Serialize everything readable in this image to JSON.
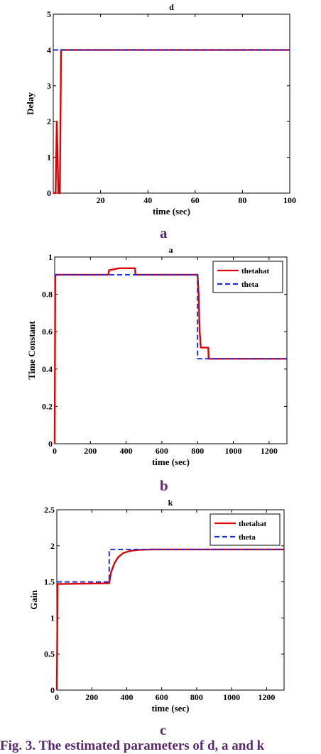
{
  "chart_data": [
    {
      "type": "line",
      "title": "d",
      "xlabel": "time (sec)",
      "ylabel": "Delay",
      "xlim": [
        0,
        100
      ],
      "ylim": [
        0,
        5
      ],
      "xticks": [
        20,
        40,
        60,
        80,
        100
      ],
      "yticks": [
        0,
        1,
        2,
        3,
        4,
        5
      ],
      "legend": null,
      "series": [
        {
          "name": "",
          "color": "#e00000",
          "style": "solid",
          "x": [
            0,
            1.0,
            1.5,
            2.2,
            2.8,
            3.3,
            100
          ],
          "y": [
            0,
            0,
            2,
            0,
            0,
            4,
            4
          ]
        },
        {
          "name": "",
          "color": "#1f2fd6",
          "style": "dashed",
          "x": [
            0,
            100
          ],
          "y": [
            4,
            4
          ]
        }
      ]
    },
    {
      "type": "line",
      "title": "a",
      "xlabel": "time (sec)",
      "ylabel": "Time Constant",
      "xlim": [
        0,
        1300
      ],
      "ylim": [
        0,
        1
      ],
      "xticks": [
        0,
        200,
        400,
        600,
        800,
        1000,
        1200
      ],
      "yticks": [
        0,
        0.2,
        0.4,
        0.6,
        0.8,
        1
      ],
      "legend": "top-right",
      "series": [
        {
          "name": "thetahat",
          "color": "#e00000",
          "style": "solid",
          "x": [
            0,
            3,
            300,
            305,
            320,
            360,
            450,
            452,
            800,
            806,
            812,
            818,
            860,
            862,
            1300
          ],
          "y": [
            0,
            0.905,
            0.905,
            0.93,
            0.932,
            0.94,
            0.94,
            0.905,
            0.905,
            0.8,
            0.6,
            0.515,
            0.515,
            0.455,
            0.455
          ]
        },
        {
          "name": "theta",
          "color": "#1f2fd6",
          "style": "dashed",
          "x": [
            0,
            800,
            800,
            1300
          ],
          "y": [
            0.905,
            0.905,
            0.455,
            0.455
          ]
        }
      ]
    },
    {
      "type": "line",
      "title": "k",
      "xlabel": "time (sec)",
      "ylabel": "Gain",
      "xlim": [
        0,
        1300
      ],
      "ylim": [
        0,
        2.5
      ],
      "xticks": [
        0,
        200,
        400,
        600,
        800,
        1000,
        1200
      ],
      "yticks": [
        0,
        0.5,
        1,
        1.5,
        2,
        2.5
      ],
      "legend": "top-right",
      "series": [
        {
          "name": "thetahat",
          "color": "#e00000",
          "style": "solid",
          "x": [
            0,
            5,
            300,
            310,
            330,
            350,
            380,
            420,
            470,
            550,
            1300
          ],
          "y": [
            0,
            1.47,
            1.48,
            1.63,
            1.76,
            1.84,
            1.9,
            1.93,
            1.945,
            1.95,
            1.95
          ]
        },
        {
          "name": "theta",
          "color": "#1f2fd6",
          "style": "dashed",
          "x": [
            0,
            300,
            300,
            1300
          ],
          "y": [
            1.5,
            1.5,
            1.95,
            1.95
          ]
        }
      ]
    }
  ],
  "panel_letters": [
    "a",
    "b",
    "c"
  ],
  "caption": "Fig. 3. The estimated parameters of d, a and k"
}
